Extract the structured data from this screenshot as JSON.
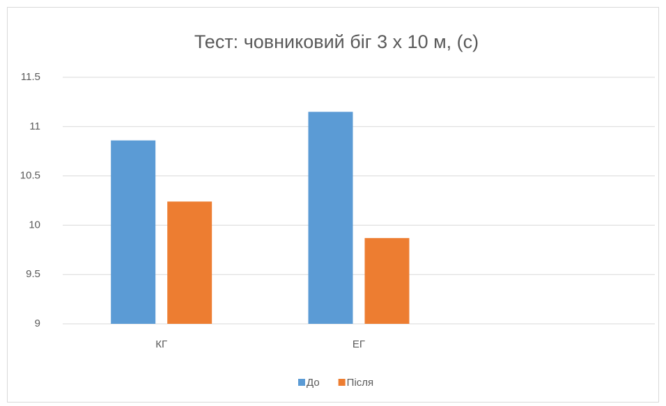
{
  "chart_data": {
    "type": "bar",
    "title": "Тест: човниковий біг 3 х 10 м, (с)",
    "categories": [
      "КГ",
      "ЕГ",
      null
    ],
    "series": [
      {
        "name": "До",
        "color": "#5b9bd5",
        "values": [
          10.86,
          11.15,
          null
        ]
      },
      {
        "name": "Після",
        "color": "#ed7d31",
        "values": [
          10.24,
          9.87,
          null
        ]
      }
    ],
    "ylim": [
      9,
      11.5
    ],
    "yticks": [
      9,
      9.5,
      10,
      10.5,
      11,
      11.5
    ],
    "grid": true,
    "legend": "bottom"
  }
}
